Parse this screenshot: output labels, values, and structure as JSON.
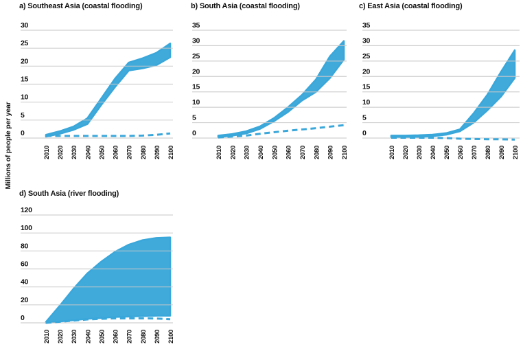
{
  "figure": {
    "y_axis_label": "Millions of people per year",
    "accent_color": "#3aa7da",
    "gridline_color": "#c8c8c8",
    "background_color": "#ffffff",
    "text_color": "#111111"
  },
  "chart_data": [
    {
      "id": "a",
      "type": "area",
      "title": "a) Southeast Asia (coastal flooding)",
      "region": "Southeast Asia",
      "hazard": "coastal flooding",
      "xlabel": "",
      "ylabel": "Millions of people per year",
      "categories": [
        "2010",
        "2020",
        "2030",
        "2040",
        "2050",
        "2060",
        "2070",
        "2080",
        "2090",
        "2100"
      ],
      "ylim": [
        0,
        30
      ],
      "yticks": [
        0,
        5,
        10,
        15,
        20,
        25,
        30
      ],
      "grid": true,
      "legend": "none",
      "series": [
        {
          "name": "band_upper",
          "style": "area-edge",
          "values": [
            0.9,
            1.9,
            3.2,
            5.5,
            11.0,
            16.5,
            21.0,
            22.2,
            23.7,
            26.3
          ]
        },
        {
          "name": "band_lower",
          "style": "area-edge",
          "values": [
            0.4,
            1.2,
            2.3,
            3.9,
            9.2,
            14.2,
            18.8,
            19.4,
            20.3,
            22.5
          ]
        },
        {
          "name": "dashed_line",
          "style": "dashed",
          "values": [
            0.6,
            0.6,
            0.6,
            0.6,
            0.6,
            0.6,
            0.6,
            0.7,
            0.9,
            1.3
          ]
        }
      ]
    },
    {
      "id": "b",
      "type": "area",
      "title": "b) South Asia (coastal flooding)",
      "region": "South Asia",
      "hazard": "coastal flooding",
      "xlabel": "",
      "ylabel": "Millions of people per year",
      "categories": [
        "2010",
        "2020",
        "2030",
        "2040",
        "2050",
        "2060",
        "2070",
        "2080",
        "2090",
        "2100"
      ],
      "ylim": [
        0,
        35
      ],
      "yticks": [
        0,
        5,
        10,
        15,
        20,
        25,
        30,
        35
      ],
      "grid": true,
      "legend": "none",
      "series": [
        {
          "name": "band_upper",
          "style": "area-edge",
          "values": [
            0.8,
            1.3,
            2.2,
            3.8,
            6.5,
            10.0,
            14.0,
            19.0,
            26.5,
            31.5
          ]
        },
        {
          "name": "band_lower",
          "style": "area-edge",
          "values": [
            0.3,
            0.8,
            1.5,
            3.0,
            5.5,
            8.5,
            12.2,
            15.0,
            19.5,
            25.5
          ]
        },
        {
          "name": "dashed_line",
          "style": "dashed",
          "values": [
            0.2,
            0.5,
            0.8,
            1.4,
            1.9,
            2.4,
            2.8,
            3.2,
            3.7,
            4.2
          ]
        }
      ]
    },
    {
      "id": "c",
      "type": "area",
      "title": "c) East Asia (coastal flooding)",
      "region": "East Asia",
      "hazard": "coastal flooding",
      "xlabel": "",
      "ylabel": "Millions of people per year",
      "categories": [
        "2010",
        "2020",
        "2030",
        "2040",
        "2050",
        "2060",
        "2070",
        "2080",
        "2090",
        "2100"
      ],
      "ylim": [
        0,
        35
      ],
      "yticks": [
        0,
        5,
        10,
        15,
        20,
        25,
        30,
        35
      ],
      "grid": true,
      "legend": "none",
      "series": [
        {
          "name": "band_upper",
          "style": "area-edge",
          "values": [
            0.8,
            0.8,
            0.9,
            1.1,
            1.6,
            2.8,
            8.0,
            14.0,
            21.5,
            28.5
          ]
        },
        {
          "name": "band_lower",
          "style": "area-edge",
          "values": [
            0.3,
            0.3,
            0.4,
            0.6,
            1.1,
            2.2,
            5.0,
            9.0,
            13.5,
            19.5
          ]
        },
        {
          "name": "dashed_line",
          "style": "dashed",
          "values": [
            0.1,
            0.1,
            0.1,
            0.1,
            0.0,
            -0.2,
            -0.3,
            -0.4,
            -0.4,
            -0.5
          ]
        }
      ]
    },
    {
      "id": "d",
      "type": "area",
      "title": "d) South Asia (river flooding)",
      "region": "South Asia",
      "hazard": "river flooding",
      "xlabel": "",
      "ylabel": "Millions of people per year",
      "categories": [
        "2010",
        "2020",
        "2030",
        "2040",
        "2050",
        "2060",
        "2070",
        "2080",
        "2090",
        "2100"
      ],
      "ylim": [
        0,
        120
      ],
      "yticks": [
        0,
        20,
        40,
        60,
        80,
        100,
        120
      ],
      "grid": true,
      "legend": "none",
      "series": [
        {
          "name": "band_upper",
          "style": "area-edge",
          "values": [
            1,
            19,
            38,
            55,
            68,
            79,
            87,
            92,
            94.5,
            95
          ]
        },
        {
          "name": "band_lower",
          "style": "area-edge",
          "values": [
            0,
            1.5,
            3.0,
            4.5,
            5.5,
            6.5,
            7.0,
            7.5,
            8.0,
            8.0
          ]
        },
        {
          "name": "dashed_line",
          "style": "dashed",
          "values": [
            0,
            1.2,
            2.5,
            3.8,
            4.5,
            5.0,
            5.0,
            5.0,
            4.8,
            4.0
          ]
        }
      ]
    }
  ]
}
